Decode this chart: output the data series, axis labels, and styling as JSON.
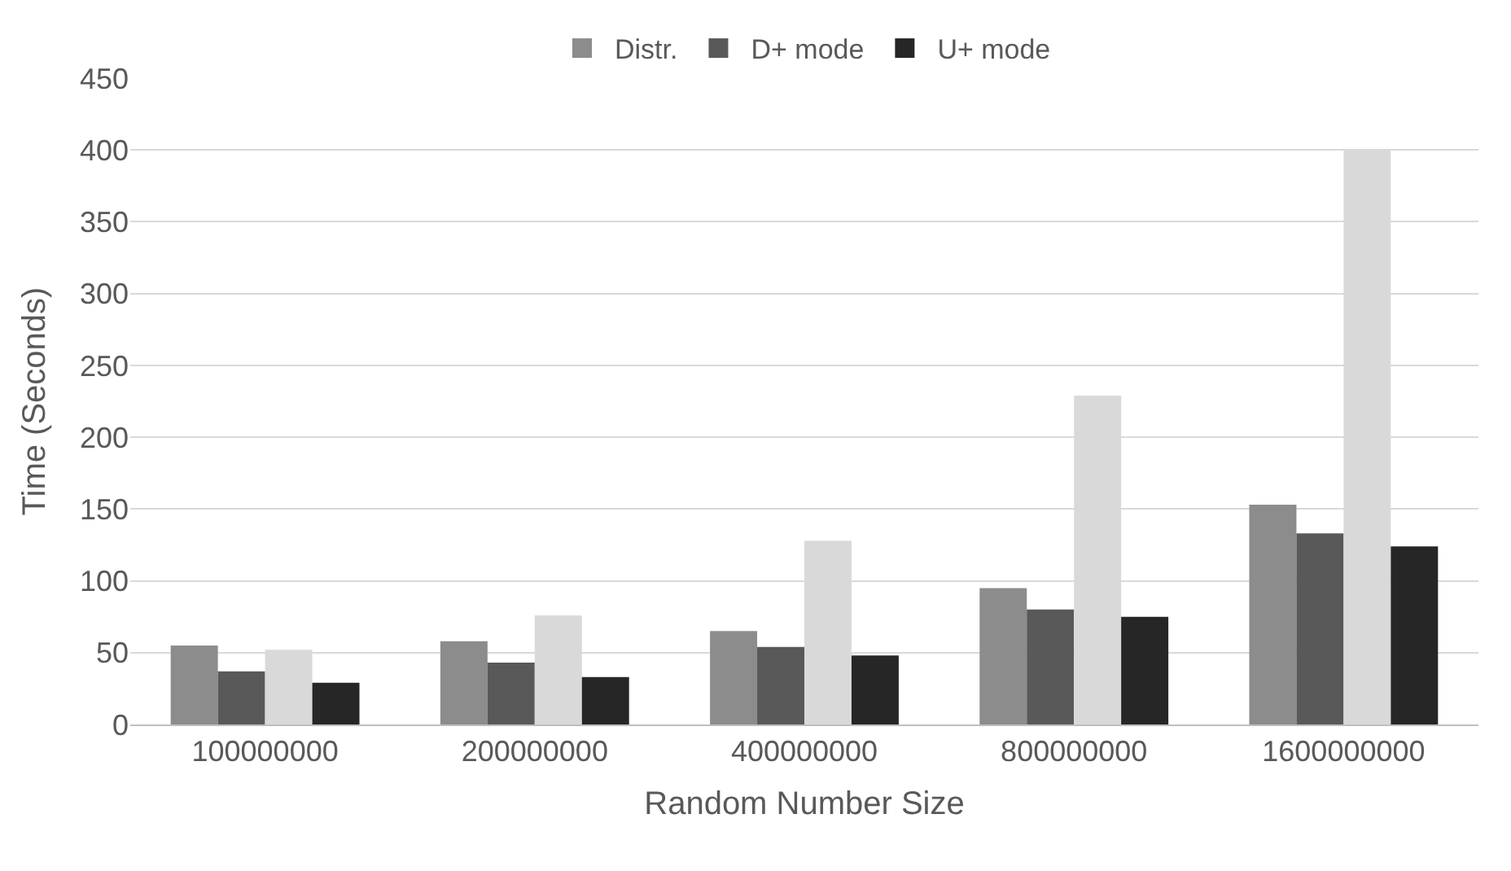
{
  "chart_data": {
    "type": "bar",
    "xlabel": "Random Number Size",
    "ylabel": "Time (Seconds)",
    "categories": [
      "100000000",
      "200000000",
      "400000000",
      "800000000",
      "1600000000"
    ],
    "series": [
      {
        "name": "Distr.",
        "color": "#8c8c8c",
        "values": [
          55,
          58,
          65,
          95,
          153
        ]
      },
      {
        "name": "D+ mode",
        "color": "#595959",
        "values": [
          37,
          43,
          54,
          80,
          133
        ]
      },
      {
        "color": "#d9d9d9",
        "values": [
          52,
          76,
          128,
          229,
          400
        ]
      },
      {
        "name": "U+ mode",
        "color": "#262626",
        "values": [
          29,
          33,
          48,
          75,
          124
        ]
      }
    ],
    "ylim": [
      0,
      450
    ],
    "yticks": [
      0,
      50,
      100,
      150,
      200,
      250,
      300,
      350,
      400,
      450
    ],
    "grid": "y",
    "legend": "top"
  }
}
